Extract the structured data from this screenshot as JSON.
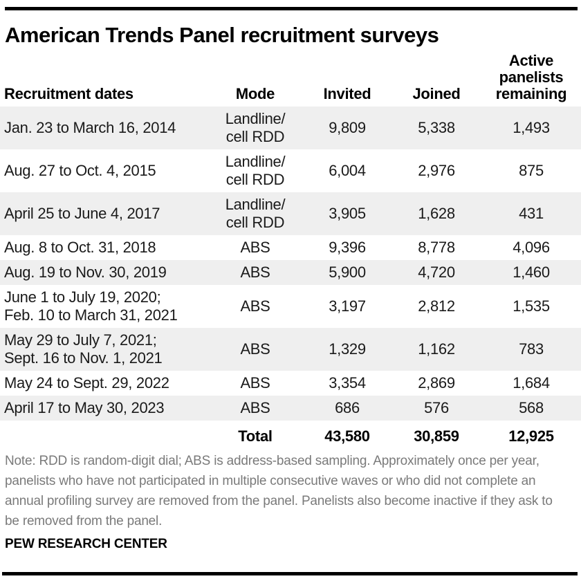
{
  "header": {
    "title": "American Trends Panel recruitment surveys"
  },
  "chart_data": {
    "type": "table",
    "title": "American Trends Panel recruitment surveys",
    "columns": [
      "Recruitment dates",
      "Mode",
      "Invited",
      "Joined",
      "Active\npanelists\nremaining"
    ],
    "rows": [
      {
        "dates": "Jan. 23 to March 16, 2014",
        "mode": "Landline/\ncell RDD",
        "invited": "9,809",
        "joined": "5,338",
        "active": "1,493"
      },
      {
        "dates": "Aug. 27 to Oct. 4, 2015",
        "mode": "Landline/\ncell RDD",
        "invited": "6,004",
        "joined": "2,976",
        "active": "875"
      },
      {
        "dates": "April 25 to June 4, 2017",
        "mode": "Landline/\ncell RDD",
        "invited": "3,905",
        "joined": "1,628",
        "active": "431"
      },
      {
        "dates": "Aug. 8 to Oct. 31, 2018",
        "mode": "ABS",
        "invited": "9,396",
        "joined": "8,778",
        "active": "4,096"
      },
      {
        "dates": "Aug. 19 to Nov. 30, 2019",
        "mode": "ABS",
        "invited": "5,900",
        "joined": "4,720",
        "active": "1,460"
      },
      {
        "dates": "June 1 to July 19, 2020;\nFeb. 10 to March 31, 2021",
        "mode": "ABS",
        "invited": "3,197",
        "joined": "2,812",
        "active": "1,535"
      },
      {
        "dates": "May 29 to July 7, 2021;\nSept. 16 to Nov. 1, 2021",
        "mode": "ABS",
        "invited": "1,329",
        "joined": "1,162",
        "active": "783"
      },
      {
        "dates": "May 24 to Sept. 29, 2022",
        "mode": "ABS",
        "invited": "3,354",
        "joined": "2,869",
        "active": "1,684"
      },
      {
        "dates": "April 17 to May 30, 2023",
        "mode": "ABS",
        "invited": "686",
        "joined": "576",
        "active": "568"
      }
    ],
    "total": {
      "label": "Total",
      "invited": "43,580",
      "joined": "30,859",
      "active": "12,925"
    },
    "layout_hints": {
      "row_shading": "alternating starting with first data row",
      "numeric_alignment": "center"
    }
  },
  "colors": {
    "row_shade": "#efefef",
    "rule": "#000000",
    "note_text": "#7a7a7a",
    "body_text": "#1a1a1a"
  },
  "footer": {
    "note": "Note: RDD is random-digit dial; ABS is address-based sampling. Approximately once per year, panelists who have not participated in multiple consecutive waves or who did not complete an annual profiling survey are removed from the panel. Panelists also become inactive if they ask to be removed from the panel.",
    "source": "PEW RESEARCH CENTER"
  }
}
